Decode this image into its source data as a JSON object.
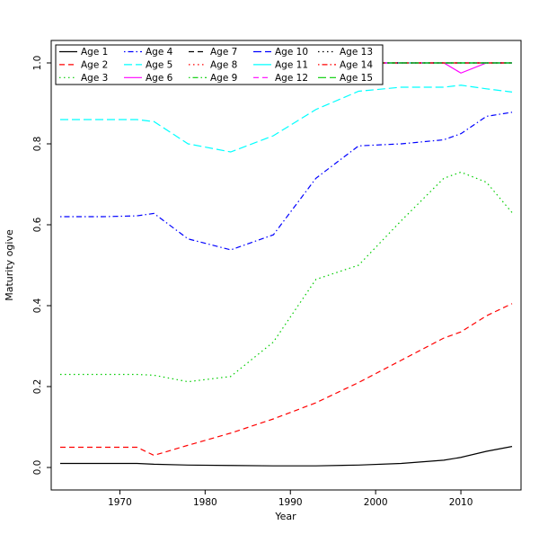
{
  "colors": {
    "background": "#ffffff",
    "foreground": "#000000"
  },
  "chart_data": {
    "type": "line",
    "title": "",
    "xlabel": "Year",
    "ylabel": "Maturity ogive",
    "xlim": [
      1963,
      2016
    ],
    "ylim": [
      0,
      1
    ],
    "xticks": [
      1970,
      1980,
      1990,
      2000,
      2010
    ],
    "ytick_labels": [
      "0.0",
      "0.2",
      "0.4",
      "0.6",
      "0.8",
      "1.0"
    ],
    "grid": false,
    "legend_position": "top-left-inside",
    "legend_columns": 5,
    "x": [
      1963,
      1968,
      1972,
      1974,
      1978,
      1983,
      1988,
      1993,
      1998,
      2003,
      2008,
      2010,
      2013,
      2016
    ],
    "series": [
      {
        "name": "Age 1",
        "color": "#000000",
        "linetype": "solid",
        "values": [
          0.01,
          0.01,
          0.01,
          0.008,
          0.006,
          0.005,
          0.004,
          0.004,
          0.006,
          0.01,
          0.018,
          0.025,
          0.04,
          0.052
        ]
      },
      {
        "name": "Age 2",
        "color": "#ff0000",
        "linetype": "dashed",
        "values": [
          0.05,
          0.05,
          0.05,
          0.03,
          0.055,
          0.085,
          0.12,
          0.16,
          0.21,
          0.265,
          0.32,
          0.335,
          0.375,
          0.405
        ]
      },
      {
        "name": "Age 3",
        "color": "#00cd00",
        "linetype": "dotted",
        "values": [
          0.23,
          0.23,
          0.23,
          0.228,
          0.212,
          0.225,
          0.31,
          0.465,
          0.5,
          0.61,
          0.715,
          0.73,
          0.705,
          0.63
        ]
      },
      {
        "name": "Age 4",
        "color": "#0000ff",
        "linetype": "dotdash",
        "values": [
          0.62,
          0.62,
          0.622,
          0.628,
          0.565,
          0.538,
          0.575,
          0.715,
          0.795,
          0.8,
          0.81,
          0.825,
          0.868,
          0.878
        ]
      },
      {
        "name": "Age 5",
        "color": "#00ffff",
        "linetype": "longdash",
        "values": [
          0.86,
          0.86,
          0.86,
          0.855,
          0.8,
          0.78,
          0.82,
          0.885,
          0.93,
          0.94,
          0.94,
          0.945,
          0.936,
          0.928
        ]
      },
      {
        "name": "Age 6",
        "color": "#ff00ff",
        "linetype": "solid",
        "values": [
          1,
          1,
          1,
          1,
          1,
          1,
          1,
          1,
          1,
          1,
          1,
          0.975,
          1,
          1
        ]
      },
      {
        "name": "Age 7",
        "color": "#000000",
        "linetype": "dashed",
        "values": [
          1,
          1,
          1,
          1,
          1,
          1,
          1,
          1,
          1,
          1,
          1,
          1,
          1,
          1
        ]
      },
      {
        "name": "Age 8",
        "color": "#ff0000",
        "linetype": "dotted",
        "values": [
          1,
          1,
          1,
          1,
          1,
          1,
          1,
          1,
          1,
          1,
          1,
          1,
          1,
          1
        ]
      },
      {
        "name": "Age 9",
        "color": "#00cd00",
        "linetype": "dotdash",
        "values": [
          1,
          1,
          1,
          1,
          1,
          1,
          1,
          1,
          1,
          1,
          1,
          1,
          1,
          1
        ]
      },
      {
        "name": "Age 10",
        "color": "#0000ff",
        "linetype": "longdash",
        "values": [
          1,
          1,
          1,
          1,
          1,
          1,
          1,
          1,
          1,
          1,
          1,
          1,
          1,
          1
        ]
      },
      {
        "name": "Age 11",
        "color": "#00ffff",
        "linetype": "solid",
        "values": [
          1,
          1,
          1,
          1,
          1,
          1,
          1,
          1,
          1,
          1,
          1,
          1,
          1,
          1
        ]
      },
      {
        "name": "Age 12",
        "color": "#ff00ff",
        "linetype": "dashed",
        "values": [
          1,
          1,
          1,
          1,
          1,
          1,
          1,
          1,
          1,
          1,
          1,
          1,
          1,
          1
        ]
      },
      {
        "name": "Age 13",
        "color": "#000000",
        "linetype": "dotted",
        "values": [
          1,
          1,
          1,
          1,
          1,
          1,
          1,
          1,
          1,
          1,
          1,
          1,
          1,
          1
        ]
      },
      {
        "name": "Age 14",
        "color": "#ff0000",
        "linetype": "dotdash",
        "values": [
          1,
          1,
          1,
          1,
          1,
          1,
          1,
          1,
          1,
          1,
          1,
          1,
          1,
          1
        ]
      },
      {
        "name": "Age 15",
        "color": "#00cd00",
        "linetype": "longdash",
        "values": [
          1,
          1,
          1,
          1,
          1,
          1,
          1,
          1,
          1,
          1,
          1,
          1,
          1,
          1
        ]
      }
    ]
  }
}
